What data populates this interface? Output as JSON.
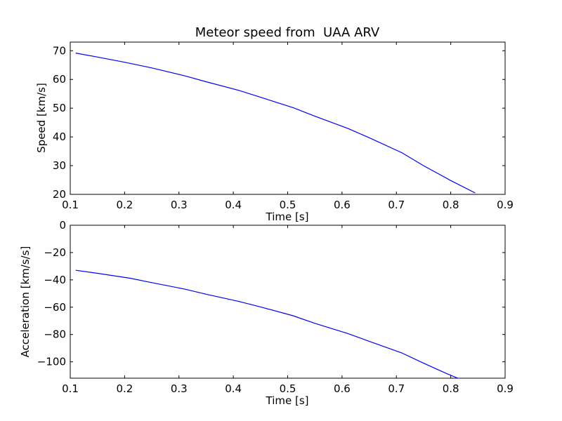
{
  "chart_data": [
    {
      "type": "line",
      "title": "Meteor speed from  UAA ARV",
      "xlabel": "Time [s]",
      "ylabel": "Speed [km/s]",
      "xlim": [
        0.1,
        0.9
      ],
      "ylim": [
        20,
        73
      ],
      "x_ticks": [
        "0.1",
        "0.2",
        "0.3",
        "0.4",
        "0.5",
        "0.6",
        "0.7",
        "0.8",
        "0.9"
      ],
      "y_ticks": [
        "20",
        "30",
        "40",
        "50",
        "60",
        "70"
      ],
      "grid": false,
      "line_color": "#0000ff",
      "series": [
        {
          "x": [
            0.11,
            0.15,
            0.2,
            0.25,
            0.31,
            0.35,
            0.41,
            0.45,
            0.51,
            0.55,
            0.61,
            0.65,
            0.71,
            0.75,
            0.8,
            0.845
          ],
          "y": [
            69.2,
            67.8,
            66.0,
            64.0,
            61.3,
            59.2,
            56.2,
            53.8,
            50.2,
            47.2,
            43.0,
            39.7,
            34.5,
            30.0,
            24.8,
            20.5
          ]
        }
      ]
    },
    {
      "type": "line",
      "title": "",
      "xlabel": "Time [s]",
      "ylabel": "Acceleration [km/s/s]",
      "xlim": [
        0.1,
        0.9
      ],
      "ylim": [
        -112,
        0
      ],
      "x_ticks": [
        "0.1",
        "0.2",
        "0.3",
        "0.4",
        "0.5",
        "0.6",
        "0.7",
        "0.8",
        "0.9"
      ],
      "y_ticks": [
        "0",
        "−20",
        "−40",
        "−60",
        "−80",
        "−100"
      ],
      "grid": false,
      "line_color": "#0000ff",
      "series": [
        {
          "x": [
            0.11,
            0.15,
            0.21,
            0.25,
            0.31,
            0.35,
            0.41,
            0.45,
            0.51,
            0.55,
            0.61,
            0.65,
            0.71,
            0.75,
            0.79,
            0.813
          ],
          "y": [
            -33,
            -35.2,
            -38.8,
            -42.0,
            -46.7,
            -50.5,
            -55.8,
            -59.8,
            -66.3,
            -71.8,
            -79.2,
            -85.0,
            -93.5,
            -101.0,
            -108.2,
            -112
          ]
        }
      ]
    }
  ]
}
